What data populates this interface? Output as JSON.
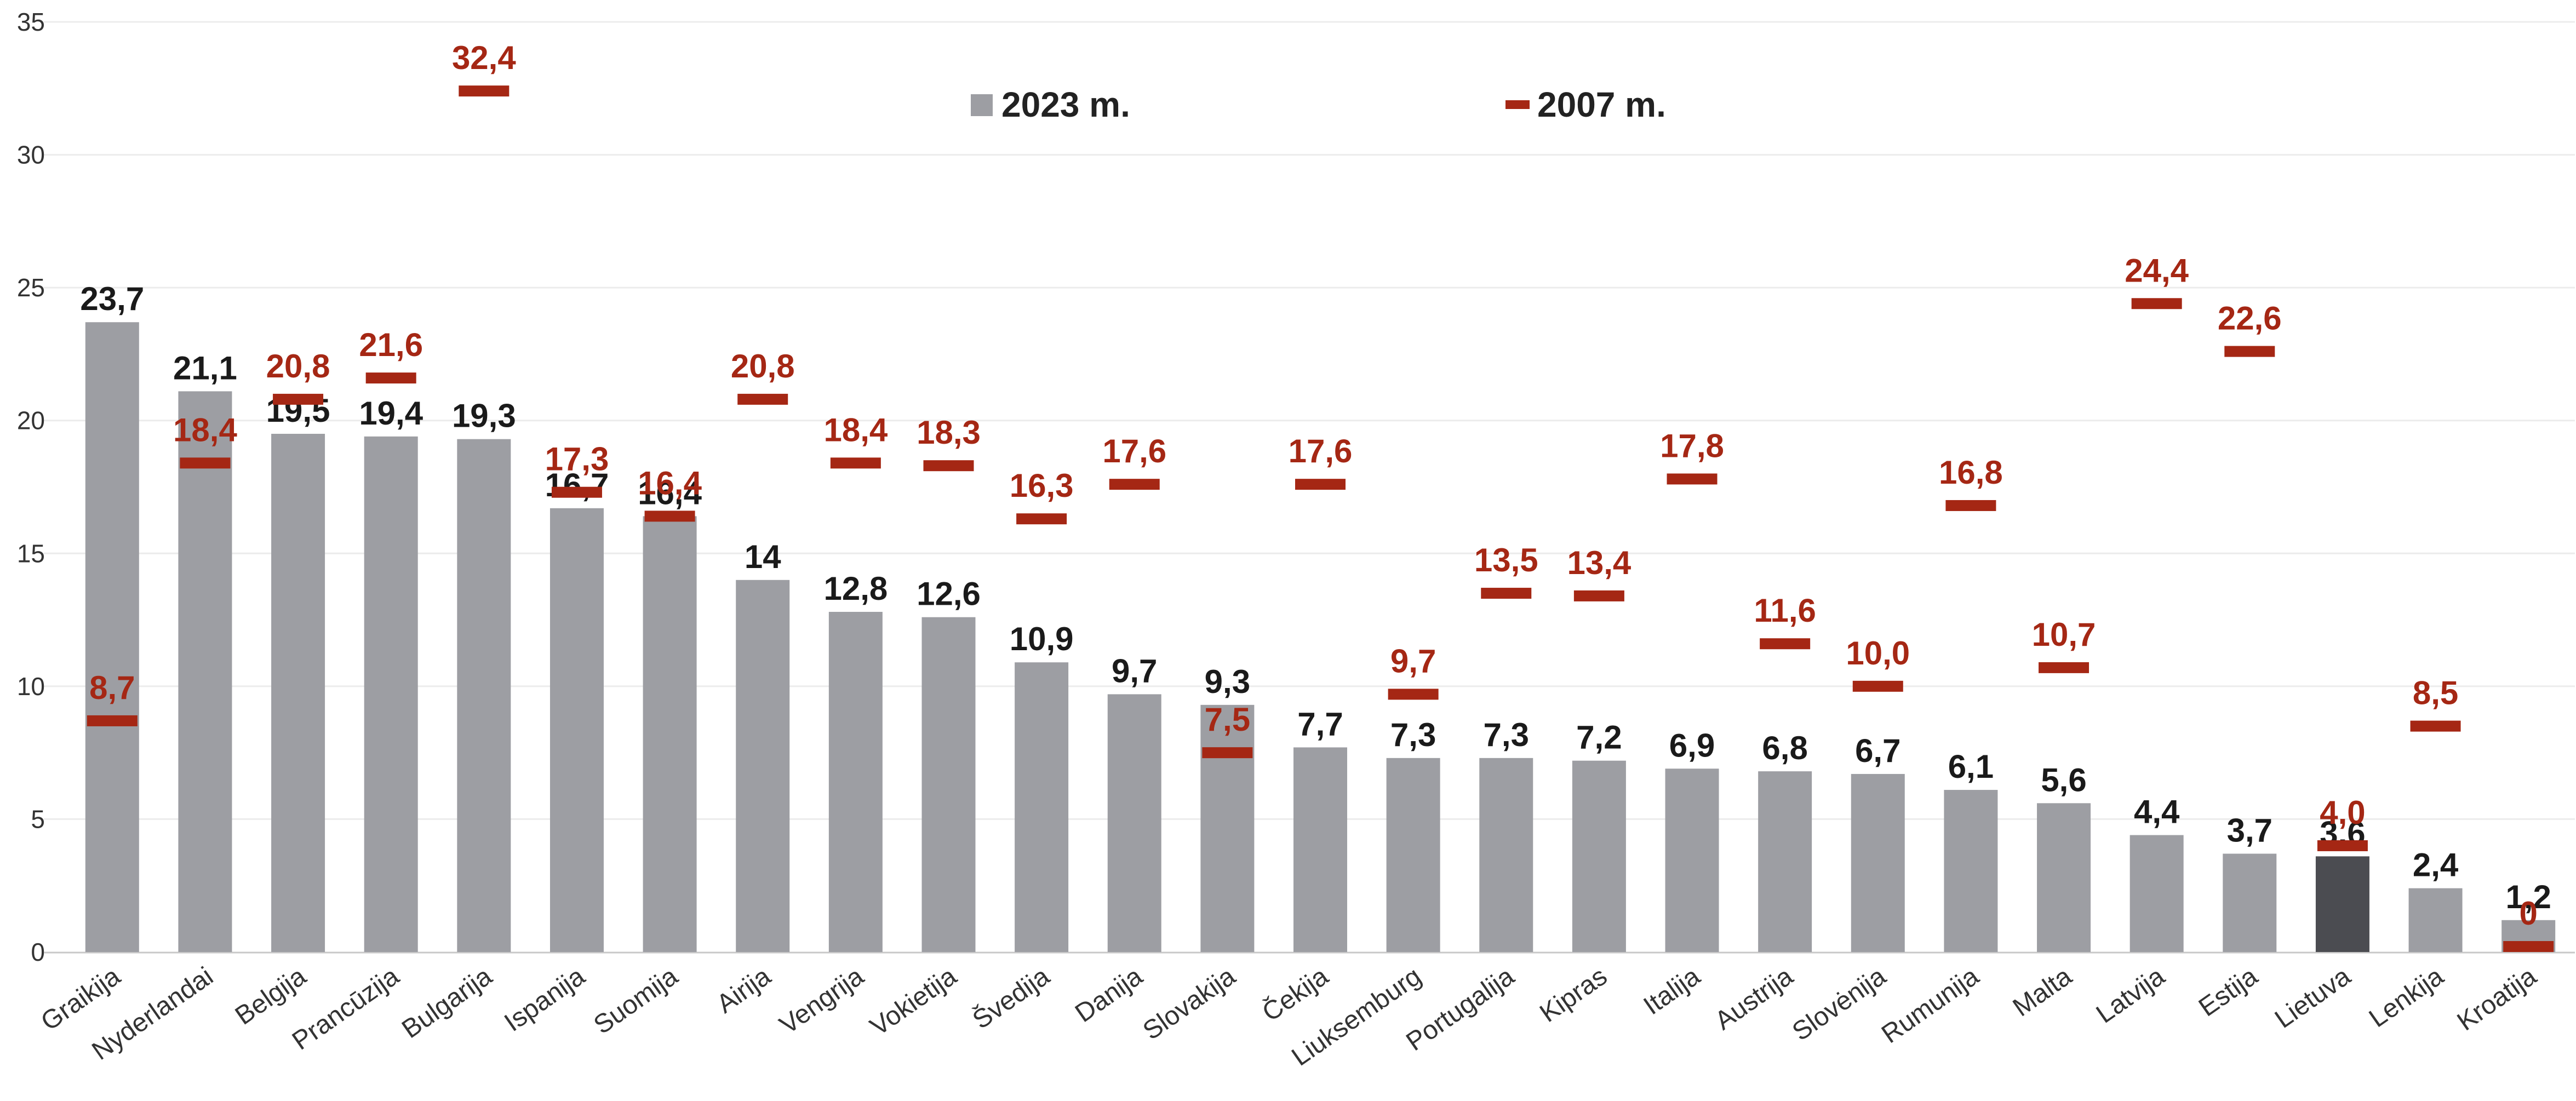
{
  "chart_data": {
    "type": "bar",
    "categories": [
      "Graikija",
      "Nyderlandai",
      "Belgija",
      "Prancūzija",
      "Bulgarija",
      "Ispanija",
      "Suomija",
      "Airija",
      "Vengrija",
      "Vokietija",
      "Švedija",
      "Danija",
      "Slovakija",
      "Čekija",
      "Liuksemburg",
      "Portugalija",
      "Kipras",
      "Italija",
      "Austrija",
      "Slovėnija",
      "Rumunija",
      "Malta",
      "Latvija",
      "Estija",
      "Lietuva",
      "Lenkija",
      "Kroatija"
    ],
    "series": [
      {
        "name": "2023 m.",
        "marker": "bar",
        "values": [
          23.7,
          21.1,
          19.5,
          19.4,
          19.3,
          16.7,
          16.4,
          14,
          12.8,
          12.6,
          10.9,
          9.7,
          9.3,
          7.7,
          7.3,
          7.3,
          7.2,
          6.9,
          6.8,
          6.7,
          6.1,
          5.6,
          4.4,
          3.7,
          3.6,
          2.4,
          1.2
        ],
        "labels": [
          "23,7",
          "21,1",
          "19,5",
          "19,4",
          "19,3",
          "16,7",
          "16,4",
          "14",
          "12,8",
          "12,6",
          "10,9",
          "9,7",
          "9,3",
          "7,7",
          "7,3",
          "7,3",
          "7,2",
          "6,9",
          "6,8",
          "6,7",
          "6,1",
          "5,6",
          "4,4",
          "3,7",
          "3,6",
          "2,4",
          "1,2"
        ]
      },
      {
        "name": "2007 m.",
        "marker": "dash",
        "values": [
          8.7,
          18.4,
          20.8,
          21.6,
          32.4,
          17.3,
          16.4,
          20.8,
          18.4,
          18.3,
          16.3,
          17.6,
          7.5,
          17.6,
          9.7,
          13.5,
          13.4,
          17.8,
          11.6,
          10.0,
          16.8,
          10.7,
          24.4,
          22.6,
          4.0,
          8.5,
          0
        ],
        "labels": [
          "8,7",
          "18,4",
          "20,8",
          "21,6",
          "32,4",
          "17,3",
          "16,4",
          "20,8",
          "18,4",
          "18,3",
          "16,3",
          "17,6",
          "7,5",
          "17,6",
          "9,7",
          "13,5",
          "13,4",
          "17,8",
          "11,6",
          "10,0",
          "16,8",
          "10,7",
          "24,4",
          "22,6",
          "4,0",
          "8,5",
          "0"
        ]
      }
    ],
    "highlight_category": "Lietuva",
    "yticks": [
      "0",
      "5",
      "10",
      "15",
      "20",
      "25",
      "30",
      "35"
    ],
    "ylim": [
      0,
      35
    ],
    "grid": true,
    "legend_position": "top-center",
    "colors": {
      "bar": "#9d9ea3",
      "bar_highlight": "#4b4c51",
      "dash": "#a52714",
      "label_2023": "#1a1a1a",
      "label_2007": "#a52714",
      "grid": "#ececec",
      "axis": "#c8c8c8"
    }
  }
}
